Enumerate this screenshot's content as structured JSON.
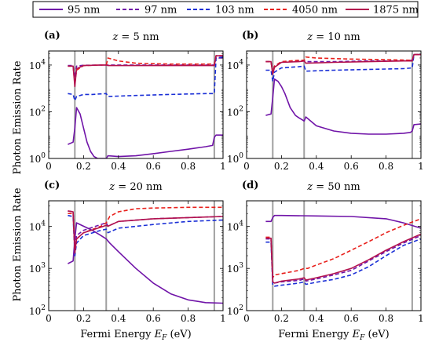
{
  "figure": {
    "legend": [
      {
        "name": "95 nm",
        "color": "#7014a8",
        "dash": "solid"
      },
      {
        "name": "97 nm",
        "color": "#7014a8",
        "dash": "dashed"
      },
      {
        "name": "103 nm",
        "color": "#1a2fd6",
        "dash": "dashed"
      },
      {
        "name": "4050 nm",
        "color": "#e8201c",
        "dash": "dashed"
      },
      {
        "name": "1875 nm",
        "color": "#b3124e",
        "dash": "solid"
      }
    ],
    "shared_ylabel": "Photon Emission Rate",
    "shared_xlabel": "Fermi Energy E_F (eV)",
    "vline_color": "#a0a0a0"
  },
  "chart_data": [
    {
      "type": "line",
      "panel": "(a)",
      "title": "z = 5 nm",
      "xlim": [
        0,
        1
      ],
      "ylim": [
        1,
        40000
      ],
      "yscale": "log",
      "xticks": [
        "0",
        "0.2",
        "0.4",
        "0.6",
        "0.8",
        "1"
      ],
      "yticks": [
        "10^0",
        "10^2",
        "10^4"
      ],
      "vlines": [
        0.15,
        0.33,
        0.95
      ],
      "series": [
        {
          "name": "95 nm",
          "x": [
            0.11,
            0.14,
            0.15,
            0.16,
            0.18,
            0.2,
            0.22,
            0.24,
            0.26,
            0.28,
            0.3,
            0.32,
            0.33,
            0.34,
            0.4,
            0.5,
            0.6,
            0.7,
            0.8,
            0.9,
            0.94,
            0.95,
            0.96,
            1.0
          ],
          "y": [
            4,
            5,
            20,
            150,
            80,
            20,
            5,
            2,
            1.2,
            1,
            1,
            1,
            1,
            1.3,
            1.2,
            1.3,
            1.6,
            2,
            2.5,
            3.2,
            3.6,
            8,
            10,
            10
          ]
        },
        {
          "name": "97 nm",
          "x": [
            0.11,
            0.14,
            0.15,
            0.16,
            0.2,
            0.33,
            0.34,
            0.5,
            0.7,
            0.9,
            0.95,
            0.96,
            1.0
          ],
          "y": [
            9500,
            9500,
            3000,
            9000,
            9800,
            10000,
            10000,
            10000,
            10000,
            10000,
            10000,
            20000,
            20000
          ]
        },
        {
          "name": "103 nm",
          "x": [
            0.11,
            0.14,
            0.15,
            0.16,
            0.2,
            0.25,
            0.3,
            0.33,
            0.34,
            0.5,
            0.7,
            0.9,
            0.95,
            0.96,
            1.0
          ],
          "y": [
            600,
            550,
            300,
            450,
            550,
            550,
            580,
            600,
            450,
            500,
            550,
            600,
            600,
            20000,
            22000
          ]
        },
        {
          "name": "4050 nm",
          "x": [
            0.11,
            0.14,
            0.15,
            0.16,
            0.2,
            0.3,
            0.33,
            0.34,
            0.4,
            0.5,
            0.7,
            0.9,
            0.95,
            0.96,
            1.0
          ],
          "y": [
            9000,
            9000,
            1500,
            6000,
            9500,
            10000,
            10000,
            20000,
            15000,
            12000,
            11000,
            11000,
            11000,
            25000,
            25000
          ]
        },
        {
          "name": "1875 nm",
          "x": [
            0.11,
            0.14,
            0.15,
            0.16,
            0.2,
            0.3,
            0.33,
            0.34,
            0.5,
            0.7,
            0.9,
            0.95,
            0.96,
            1.0
          ],
          "y": [
            9000,
            9000,
            1200,
            7000,
            9500,
            10000,
            10000,
            9500,
            9500,
            9500,
            9500,
            9500,
            25000,
            25000
          ]
        }
      ]
    },
    {
      "type": "line",
      "panel": "(b)",
      "title": "z = 10 nm",
      "xlim": [
        0,
        1
      ],
      "ylim": [
        1,
        40000
      ],
      "yscale": "log",
      "xticks": [
        "0",
        "0.2",
        "0.4",
        "0.6",
        "0.8",
        "1"
      ],
      "yticks": [
        "10^0",
        "10^2",
        "10^4"
      ],
      "vlines": [
        0.15,
        0.33,
        0.95
      ],
      "series": [
        {
          "name": "95 nm",
          "x": [
            0.11,
            0.14,
            0.15,
            0.16,
            0.18,
            0.2,
            0.22,
            0.25,
            0.28,
            0.3,
            0.32,
            0.33,
            0.34,
            0.4,
            0.5,
            0.6,
            0.7,
            0.8,
            0.9,
            0.94,
            0.95,
            0.96,
            1.0
          ],
          "y": [
            70,
            80,
            400,
            2500,
            2000,
            1200,
            600,
            150,
            70,
            55,
            45,
            40,
            60,
            25,
            15,
            12,
            11,
            11,
            12,
            13,
            15,
            28,
            30
          ]
        },
        {
          "name": "97 nm",
          "x": [
            0.11,
            0.14,
            0.15,
            0.16,
            0.2,
            0.33,
            0.34,
            0.5,
            0.7,
            0.9,
            0.95,
            0.96,
            1.0
          ],
          "y": [
            14000,
            14000,
            5000,
            9000,
            14000,
            15000,
            14000,
            14000,
            15000,
            15000,
            16000,
            28000,
            28000
          ]
        },
        {
          "name": "103 nm",
          "x": [
            0.11,
            0.14,
            0.15,
            0.16,
            0.2,
            0.3,
            0.33,
            0.34,
            0.5,
            0.7,
            0.9,
            0.95,
            0.96,
            1.0
          ],
          "y": [
            6000,
            6000,
            2000,
            5000,
            7500,
            8500,
            9000,
            5500,
            6000,
            6500,
            7000,
            7500,
            28000,
            28000
          ]
        },
        {
          "name": "4050 nm",
          "x": [
            0.11,
            0.14,
            0.15,
            0.16,
            0.2,
            0.3,
            0.33,
            0.34,
            0.4,
            0.6,
            0.8,
            0.95,
            0.96,
            1.0
          ],
          "y": [
            14000,
            14000,
            5000,
            9000,
            14000,
            16000,
            16000,
            22000,
            20000,
            18000,
            17000,
            16000,
            28000,
            28000
          ]
        },
        {
          "name": "1875 nm",
          "x": [
            0.11,
            0.14,
            0.15,
            0.16,
            0.2,
            0.3,
            0.33,
            0.34,
            0.5,
            0.7,
            0.9,
            0.95,
            0.96,
            1.0
          ],
          "y": [
            14000,
            14000,
            4000,
            8000,
            13000,
            14000,
            15000,
            12000,
            13000,
            14000,
            15000,
            15000,
            28000,
            28000
          ]
        }
      ]
    },
    {
      "type": "line",
      "panel": "(c)",
      "title": "z = 20 nm",
      "xlim": [
        0,
        1
      ],
      "ylim": [
        100,
        40000
      ],
      "yscale": "log",
      "xticks": [
        "0",
        "0.2",
        "0.4",
        "0.6",
        "0.8",
        "1"
      ],
      "yticks": [
        "10^2",
        "10^3",
        "10^4"
      ],
      "vlines": [
        0.15,
        0.33,
        0.95
      ],
      "series": [
        {
          "name": "95 nm",
          "x": [
            0.11,
            0.14,
            0.15,
            0.16,
            0.2,
            0.25,
            0.3,
            0.33,
            0.35,
            0.4,
            0.5,
            0.6,
            0.7,
            0.8,
            0.9,
            1.0
          ],
          "y": [
            1300,
            1500,
            5000,
            12000,
            10000,
            8000,
            6000,
            5000,
            4000,
            2500,
            1000,
            450,
            250,
            180,
            155,
            150
          ]
        },
        {
          "name": "97 nm",
          "x": [
            0.11,
            0.14,
            0.15,
            0.16,
            0.2,
            0.3,
            0.33,
            0.34,
            0.4,
            0.6,
            0.8,
            1.0
          ],
          "y": [
            23000,
            22000,
            3000,
            6000,
            8000,
            11000,
            12000,
            10000,
            13000,
            15000,
            16000,
            17000
          ]
        },
        {
          "name": "103 nm",
          "x": [
            0.11,
            0.14,
            0.15,
            0.16,
            0.2,
            0.3,
            0.33,
            0.34,
            0.4,
            0.6,
            0.8,
            1.0
          ],
          "y": [
            18000,
            17000,
            2000,
            4000,
            6000,
            8000,
            8500,
            7000,
            9000,
            11000,
            13000,
            14000
          ]
        },
        {
          "name": "4050 nm",
          "x": [
            0.11,
            0.14,
            0.15,
            0.16,
            0.2,
            0.3,
            0.33,
            0.35,
            0.4,
            0.5,
            0.6,
            0.8,
            1.0
          ],
          "y": [
            20000,
            20000,
            2500,
            5000,
            7000,
            10000,
            12000,
            17000,
            22000,
            26000,
            27000,
            28000,
            28000
          ]
        },
        {
          "name": "1875 nm",
          "x": [
            0.11,
            0.14,
            0.15,
            0.16,
            0.2,
            0.3,
            0.33,
            0.34,
            0.4,
            0.6,
            0.8,
            1.0
          ],
          "y": [
            23000,
            22000,
            2300,
            5000,
            7000,
            9500,
            10500,
            10000,
            13000,
            15000,
            16000,
            17000
          ]
        }
      ]
    },
    {
      "type": "line",
      "panel": "(d)",
      "title": "z = 50 nm",
      "xlim": [
        0,
        1
      ],
      "ylim": [
        100,
        40000
      ],
      "yscale": "log",
      "xticks": [
        "0",
        "0.2",
        "0.4",
        "0.6",
        "0.8",
        "1"
      ],
      "yticks": [
        "10^2",
        "10^3",
        "10^4"
      ],
      "vlines": [
        0.15,
        0.33,
        0.95
      ],
      "series": [
        {
          "name": "95 nm",
          "x": [
            0.11,
            0.14,
            0.15,
            0.16,
            0.2,
            0.4,
            0.6,
            0.8,
            0.9,
            1.0
          ],
          "y": [
            13000,
            13000,
            16000,
            18000,
            18000,
            17500,
            17000,
            15000,
            12000,
            9000
          ]
        },
        {
          "name": "97 nm",
          "x": [
            0.11,
            0.14,
            0.15,
            0.16,
            0.2,
            0.3,
            0.33,
            0.34,
            0.4,
            0.5,
            0.6,
            0.7,
            0.8,
            0.9,
            1.0
          ],
          "y": [
            5000,
            5000,
            500,
            450,
            480,
            520,
            560,
            500,
            560,
            700,
            900,
            1500,
            2500,
            4000,
            6000
          ]
        },
        {
          "name": "103 nm",
          "x": [
            0.11,
            0.14,
            0.15,
            0.16,
            0.2,
            0.3,
            0.33,
            0.34,
            0.4,
            0.5,
            0.6,
            0.7,
            0.8,
            0.9,
            1.0
          ],
          "y": [
            4200,
            4200,
            400,
            380,
            400,
            450,
            480,
            420,
            470,
            550,
            700,
            1100,
            2000,
            3500,
            5000
          ]
        },
        {
          "name": "4050 nm",
          "x": [
            0.11,
            0.14,
            0.15,
            0.16,
            0.2,
            0.3,
            0.33,
            0.35,
            0.4,
            0.5,
            0.6,
            0.7,
            0.8,
            0.9,
            1.0
          ],
          "y": [
            5500,
            5500,
            600,
            700,
            750,
            900,
            1000,
            1000,
            1200,
            1700,
            2700,
            4300,
            7000,
            10500,
            15000
          ]
        },
        {
          "name": "1875 nm",
          "x": [
            0.11,
            0.14,
            0.15,
            0.16,
            0.2,
            0.3,
            0.33,
            0.34,
            0.4,
            0.5,
            0.6,
            0.7,
            0.8,
            0.9,
            1.0
          ],
          "y": [
            5200,
            5200,
            480,
            450,
            500,
            560,
            600,
            530,
            600,
            750,
            1000,
            1600,
            2700,
            4300,
            6500
          ]
        }
      ]
    }
  ]
}
